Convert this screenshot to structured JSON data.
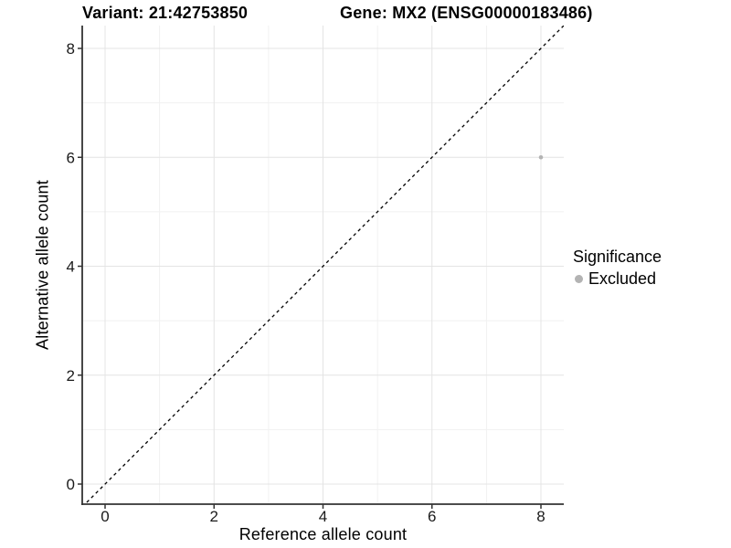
{
  "header": {
    "variant_title": "Variant: 21:42753850",
    "gene_title": "Gene: MX2 (ENSG00000183486)"
  },
  "chart_data": {
    "type": "scatter",
    "xlabel": "Reference allele count",
    "ylabel": "Alternative allele count",
    "xticks": [
      0,
      2,
      4,
      6,
      8
    ],
    "yticks": [
      0,
      2,
      4,
      6,
      8
    ],
    "xticks_minor": [
      1,
      3,
      5,
      7
    ],
    "yticks_minor": [
      1,
      3,
      5,
      7
    ],
    "xlim": [
      -0.42,
      8.42
    ],
    "ylim": [
      -0.42,
      8.42
    ],
    "grid": "major+minor",
    "identity_line": {
      "type": "abline",
      "slope": 1,
      "intercept": 0,
      "style": "dashed",
      "color": "#000000"
    },
    "series": [
      {
        "name": "Excluded",
        "color": "#b3b3b3",
        "points": [
          {
            "x": 8,
            "y": 6
          }
        ]
      }
    ],
    "legend": {
      "title": "Significance",
      "position": "right",
      "items": [
        {
          "label": "Excluded",
          "color": "#b3b3b3"
        }
      ]
    }
  },
  "colors": {
    "background": "#ffffff",
    "grid_major": "#e4e4e4",
    "grid_minor": "#f1f1f1",
    "axis_line": "#333333",
    "tick_text": "#1a1a1a",
    "text": "#000000"
  }
}
